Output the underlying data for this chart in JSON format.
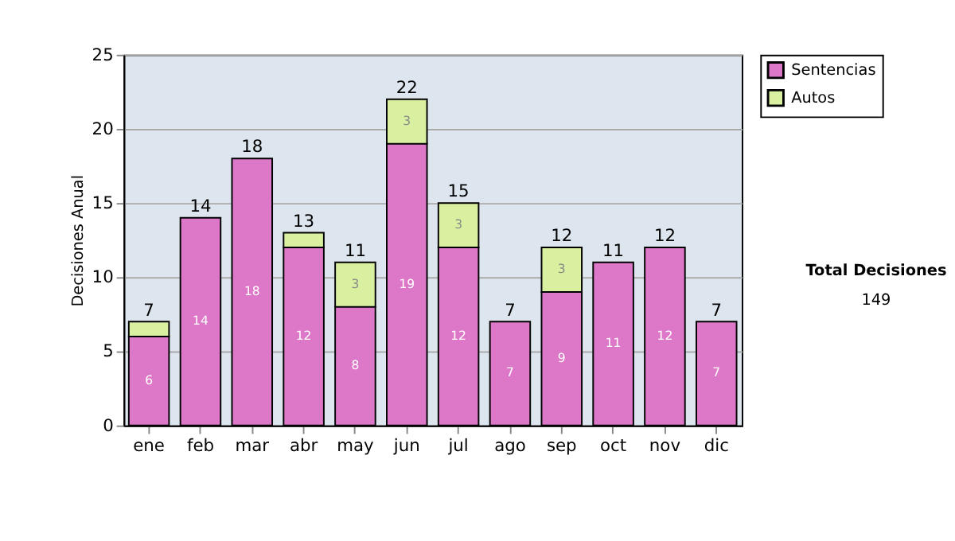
{
  "chart_data": {
    "type": "bar",
    "stacked": true,
    "ylabel": "Decisiones Anual",
    "categories": [
      "ene",
      "feb",
      "mar",
      "abr",
      "may",
      "jun",
      "jul",
      "ago",
      "sep",
      "oct",
      "nov",
      "dic"
    ],
    "series": [
      {
        "name": "Sentencias",
        "color": "#dd77c8",
        "values": [
          6,
          14,
          18,
          12,
          8,
          19,
          12,
          7,
          9,
          11,
          12,
          7
        ],
        "value_labels": [
          "6",
          "14",
          "18",
          "12",
          "8",
          "19",
          "12",
          "7",
          "9",
          "11",
          "12",
          "7"
        ]
      },
      {
        "name": "Autos",
        "color": "#d8f0a0",
        "values": [
          1,
          null,
          null,
          1,
          3,
          3,
          3,
          null,
          3,
          null,
          null,
          null
        ],
        "value_labels": [
          null,
          null,
          null,
          null,
          "3",
          "3",
          "3",
          null,
          "3",
          null,
          null,
          null
        ]
      }
    ],
    "totals": [
      "7",
      "14",
      "18",
      "13",
      "11",
      "22",
      "15",
      "7",
      "12",
      "11",
      "12",
      "7"
    ],
    "ylim": [
      0,
      25
    ],
    "yticks": [
      0,
      5,
      10,
      15,
      20,
      25
    ],
    "grid": "y",
    "legend": "right",
    "annotations": [
      "Total Decisiones",
      "149"
    ]
  }
}
